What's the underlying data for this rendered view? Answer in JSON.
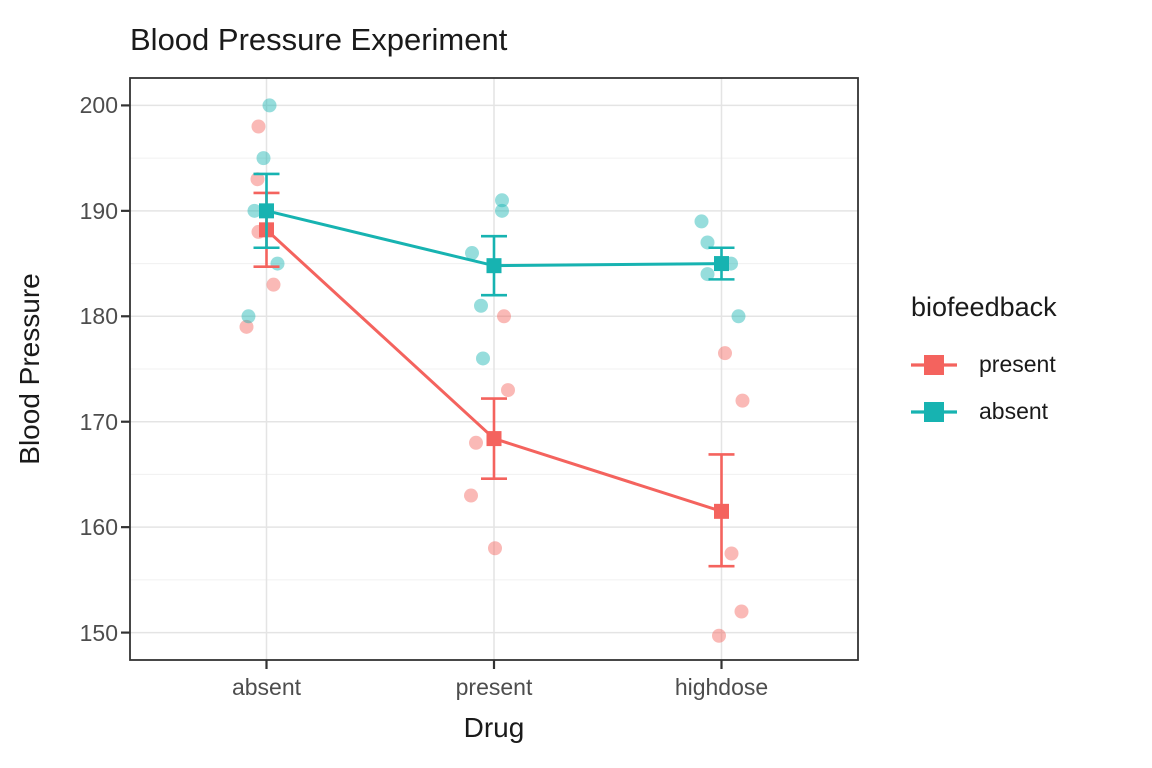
{
  "title": "Blood Pressure Experiment",
  "x_axis": {
    "label": "Drug",
    "categories": [
      "absent",
      "present",
      "highdose"
    ]
  },
  "y_axis": {
    "label": "Blood Pressure",
    "ticks": [
      200,
      190,
      180,
      170,
      160,
      150
    ]
  },
  "legend": {
    "title": "biofeedback",
    "items": [
      {
        "label": "present",
        "color": "#F4635E"
      },
      {
        "label": "absent",
        "color": "#17B3B1"
      }
    ]
  },
  "colors": {
    "present": "#F4635E",
    "absent": "#17B3B1",
    "grid_major": "#E4E4E4",
    "grid_minor": "#F0F0F0",
    "panel_border": "#333333",
    "tick_mark": "#333333"
  },
  "chart_data": {
    "type": "scatter",
    "subtype": "jittered points with mean ± SE pointrange and connecting lines",
    "title": "Blood Pressure Experiment",
    "xlabel": "Drug",
    "ylabel": "Blood Pressure",
    "categories": [
      "absent",
      "present",
      "highdose"
    ],
    "ylim": [
      147.4,
      202.6
    ],
    "y_major_ticks": [
      150,
      160,
      170,
      180,
      190,
      200
    ],
    "grid": "major and minor horizontal every 5 units, vertical at categories",
    "legend_position": "right",
    "series": [
      {
        "name": "present",
        "color": "#F4635E",
        "means": [
          188.2,
          168.4,
          161.5
        ],
        "err_low": [
          184.7,
          164.6,
          156.3
        ],
        "err_high": [
          191.7,
          172.2,
          166.9
        ],
        "points": [
          [
            198,
            193,
            188,
            183,
            179
          ],
          [
            180,
            173,
            168,
            163,
            158
          ],
          [
            176.5,
            172,
            157.5,
            152,
            149.7
          ]
        ],
        "jitter_dx": [
          [
            -8,
            -9,
            -8,
            7,
            -20
          ],
          [
            10,
            14,
            -18,
            -23,
            1
          ],
          [
            3.5,
            21,
            10,
            20,
            -2.5
          ]
        ]
      },
      {
        "name": "absent",
        "color": "#17B3B1",
        "means": [
          190.0,
          184.8,
          185.0
        ],
        "err_low": [
          186.5,
          182.0,
          183.5
        ],
        "err_high": [
          193.5,
          187.6,
          186.5
        ],
        "points": [
          [
            200,
            195,
            190,
            185,
            180
          ],
          [
            191,
            190,
            186,
            181,
            176
          ],
          [
            189,
            187,
            185,
            184,
            180
          ]
        ],
        "jitter_dx": [
          [
            3,
            -3,
            -12,
            11,
            -18
          ],
          [
            8,
            8,
            -22,
            -13,
            -11
          ],
          [
            -20,
            -14,
            9.5,
            -14,
            17
          ]
        ]
      }
    ]
  }
}
